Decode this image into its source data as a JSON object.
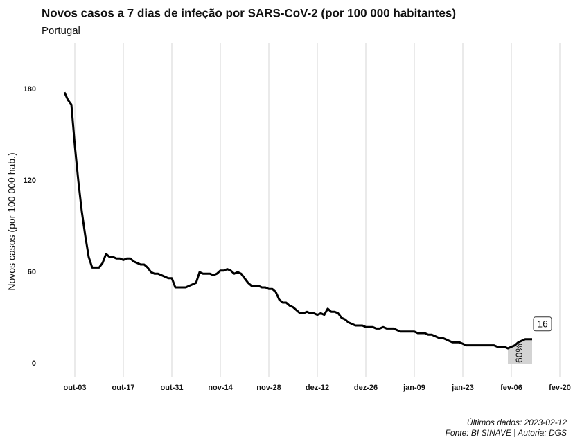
{
  "chart_data": {
    "type": "line",
    "title": "Novos casos a 7 dias de infeção por SARS-CoV-2 (por 100 000 habitantes)",
    "subtitle": "Portugal",
    "y_label": "Novos casos (por 100 000 hab.)",
    "caption": [
      "Últimos dados: 2023-02-12",
      "Fonte: BI SINAVE | Autoria: DGS"
    ],
    "end_label": "16",
    "change_label": "60%",
    "categories": [
      null,
      null,
      null,
      "out-03",
      null,
      null,
      null,
      null,
      null,
      null,
      null,
      null,
      null,
      null,
      null,
      null,
      null,
      "out-17",
      null,
      null,
      null,
      null,
      null,
      null,
      null,
      null,
      null,
      null,
      null,
      null,
      null,
      "out-31",
      null,
      null,
      null,
      null,
      null,
      null,
      null,
      null,
      null,
      null,
      null,
      null,
      null,
      "nov-14",
      null,
      null,
      null,
      null,
      null,
      null,
      null,
      null,
      null,
      null,
      null,
      null,
      null,
      "nov-28",
      null,
      null,
      null,
      null,
      null,
      null,
      null,
      null,
      null,
      null,
      null,
      null,
      null,
      "dez-12",
      null,
      null,
      null,
      null,
      null,
      null,
      null,
      null,
      null,
      null,
      null,
      null,
      null,
      "dez-26",
      null,
      null,
      null,
      null,
      null,
      null,
      null,
      null,
      null,
      null,
      null,
      null,
      null,
      "jan-09",
      null,
      null,
      null,
      null,
      null,
      null,
      null,
      null,
      null,
      null,
      null,
      null,
      null,
      "jan-23",
      null,
      null,
      null,
      null,
      null,
      null,
      null,
      null,
      null,
      null,
      null,
      null,
      null,
      "fev-06",
      null,
      null,
      null,
      null,
      null,
      null,
      null,
      null,
      null,
      null,
      null,
      null,
      null,
      "fev-20"
    ],
    "series": [
      {
        "name": "Portugal",
        "color": "#000000",
        "values": [
          178,
          173,
          170,
          143,
          120,
          100,
          84,
          70,
          63,
          63,
          63,
          66,
          72,
          70,
          70,
          69,
          69,
          68,
          69,
          69,
          67,
          66,
          65,
          65,
          63,
          60,
          59,
          59,
          58,
          57,
          56,
          56,
          50,
          50,
          50,
          50,
          51,
          52,
          53,
          60,
          59,
          59,
          59,
          58,
          59,
          61,
          61,
          62,
          61,
          59,
          60,
          59,
          56,
          53,
          51,
          51,
          51,
          50,
          50,
          49,
          49,
          47,
          42,
          40,
          40,
          38,
          37,
          35,
          33,
          33,
          34,
          33,
          33,
          32,
          33,
          32,
          36,
          34,
          34,
          33,
          30,
          29,
          27,
          26,
          25,
          25,
          25,
          24,
          24,
          24,
          23,
          23,
          24,
          23,
          23,
          23,
          22,
          21,
          21,
          21,
          21,
          21,
          20,
          20,
          20,
          19,
          19,
          18,
          17,
          17,
          16,
          15,
          14,
          14,
          14,
          13,
          12,
          12,
          12,
          12,
          12,
          12,
          12,
          12,
          12,
          11,
          11,
          11,
          10,
          11,
          12,
          14,
          15,
          16,
          16,
          16,
          null,
          null,
          null,
          null,
          null,
          null,
          null,
          null
        ]
      }
    ],
    "ylim": [
      0,
      180
    ],
    "yticks": [
      0,
      60,
      120,
      180
    ],
    "grid": true,
    "highlight_color": "#d3d3d3"
  }
}
